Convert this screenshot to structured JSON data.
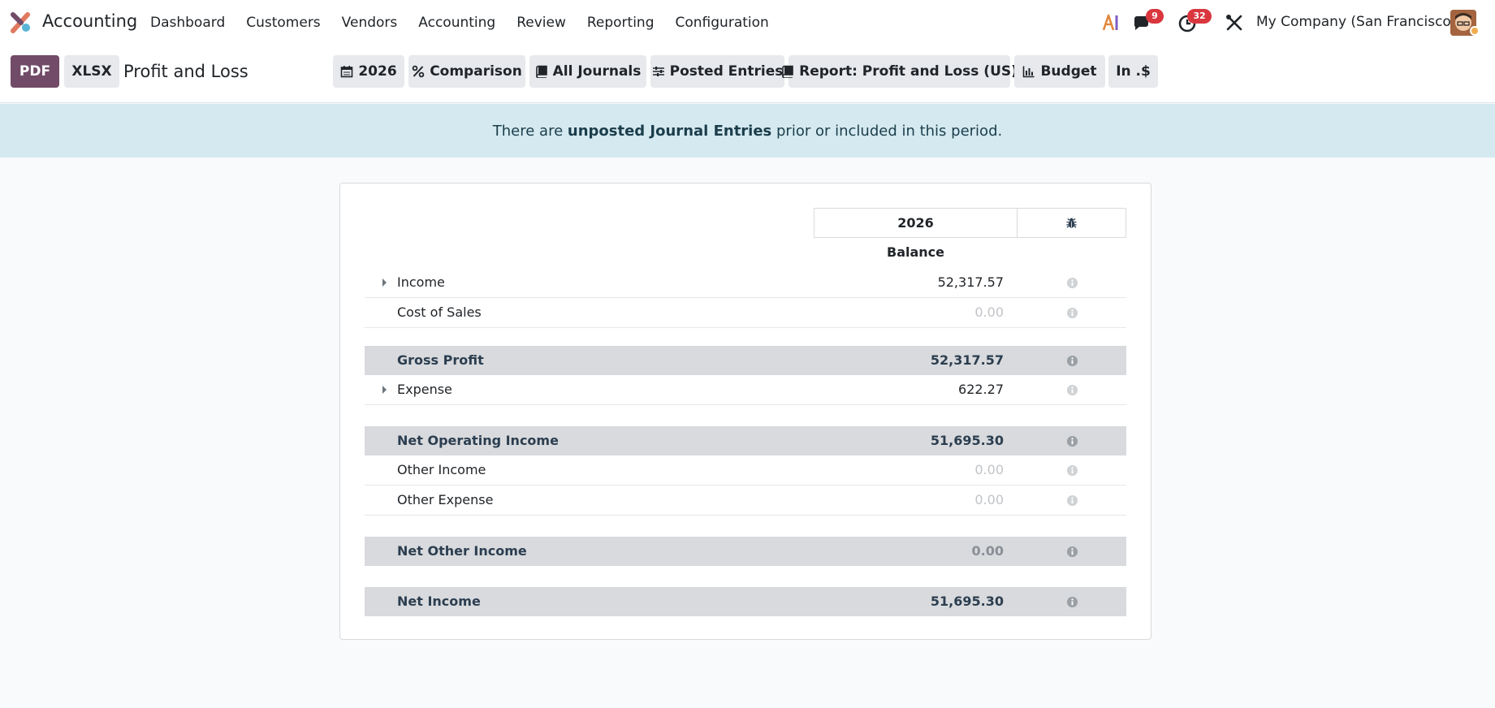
{
  "app": {
    "name": "Accounting",
    "menu": [
      "Dashboard",
      "Customers",
      "Vendors",
      "Accounting",
      "Review",
      "Reporting",
      "Configuration"
    ],
    "chat_count": "9",
    "activity_count": "32",
    "company": "My Company (San Francisco)"
  },
  "toolbar": {
    "pdf_label": "PDF",
    "xlsx_label": "XLSX",
    "title": "Profit and Loss",
    "filters": {
      "period": "2026",
      "comparison": "Comparison",
      "journals": "All Journals",
      "entries": "Posted Entries",
      "report": "Report: Profit and Loss (US)",
      "budget": "Budget",
      "currency": "In .$"
    }
  },
  "alert": {
    "prefix": "There are ",
    "link": "unposted Journal Entries",
    "suffix": " prior or included in this period."
  },
  "report": {
    "column_header": "2026",
    "column_subheader": "Balance",
    "rows": [
      {
        "label": "Income",
        "amount": "52,317.57",
        "expandable": true,
        "total": false
      },
      {
        "label": "Cost of Sales",
        "amount": "0.00",
        "expandable": false,
        "total": false
      },
      {
        "label": "Gross Profit",
        "amount": "52,317.57",
        "expandable": false,
        "total": true
      },
      {
        "label": "Expense",
        "amount": "622.27",
        "expandable": true,
        "total": false
      },
      {
        "label": "Net Operating Income",
        "amount": "51,695.30",
        "expandable": false,
        "total": true
      },
      {
        "label": "Other Income",
        "amount": "0.00",
        "expandable": false,
        "total": false
      },
      {
        "label": "Other Expense",
        "amount": "0.00",
        "expandable": false,
        "total": false
      },
      {
        "label": "Net Other Income",
        "amount": "0.00",
        "expandable": false,
        "total": true
      },
      {
        "label": "Net Income",
        "amount": "51,695.30",
        "expandable": false,
        "total": true
      }
    ]
  },
  "colors": {
    "primary": "#714b67",
    "alert_bg": "#d4eaf0",
    "total_row_bg": "#d8dadd",
    "badge": "#d9363e"
  }
}
